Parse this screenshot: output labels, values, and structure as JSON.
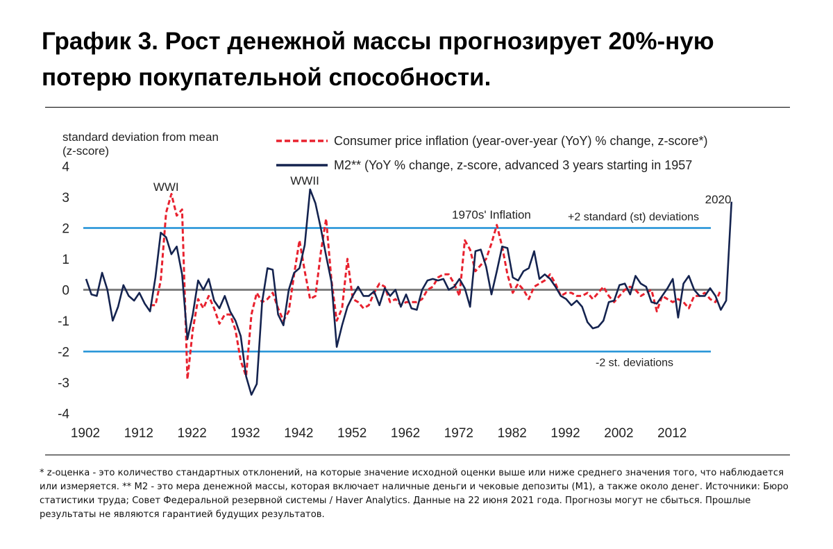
{
  "page": {
    "title": "График 3. Рост денежной массы прогнозирует 20%-ную потерю покупательной способности.",
    "footnote": "* z-оценка - это количество стандартных отклонений, на которые значение исходной оценки выше или ниже среднего значения того, что наблюдается или измеряется. ** M2 - это мера денежной массы, которая включает наличные деньги и чековые депозиты (M1), а также около денег. Источники: Бюро статистики труда; Совет Федеральной резервной системы / Haver Analytics. Данные на 22 июня 2021 года. Прогнозы могут не сбыться. Прошлые результаты не являются гарантией будущих результатов."
  },
  "chart_data": {
    "type": "line",
    "ylabel": "standard deviation from mean\n(z-score)",
    "ylim": [
      -4,
      4
    ],
    "yticks": [
      4,
      3,
      2,
      1,
      0,
      -1,
      -2,
      -3,
      -4
    ],
    "xlim": [
      1902,
      2024
    ],
    "xticks": [
      1902,
      1912,
      1922,
      1932,
      1942,
      1952,
      1962,
      1972,
      1982,
      1992,
      2002,
      2012
    ],
    "reference_lines": [
      {
        "y": 2,
        "label": "+2 standard (st) deviations",
        "color": "#1e90d6"
      },
      {
        "y": 0,
        "label": "",
        "color": "#7f7f7f"
      },
      {
        "y": -2,
        "label": "-2 st. deviations",
        "color": "#1e90d6"
      }
    ],
    "annotations": [
      {
        "text": "WWI",
        "x": 1917,
        "y": 3.2
      },
      {
        "text": "WWII",
        "x": 1943,
        "y": 3.4
      },
      {
        "text": "1970s' Inflation",
        "x": 1978,
        "y": 2.3
      },
      {
        "text": "2020",
        "x": 2020.5,
        "y": 2.8
      }
    ],
    "legend_position": "top",
    "series": [
      {
        "name": "Consumer price inflation (year-over-year (YoY) % change, z-score*)",
        "color": "#e8212e",
        "style": "dashed",
        "x": [
          1914,
          1915,
          1916,
          1917,
          1918,
          1919,
          1920,
          1921,
          1922,
          1923,
          1924,
          1925,
          1926,
          1927,
          1928,
          1929,
          1930,
          1931,
          1932,
          1933,
          1934,
          1935,
          1936,
          1937,
          1938,
          1939,
          1940,
          1941,
          1942,
          1943,
          1944,
          1945,
          1946,
          1947,
          1948,
          1949,
          1950,
          1951,
          1952,
          1953,
          1954,
          1955,
          1956,
          1957,
          1958,
          1959,
          1960,
          1961,
          1962,
          1963,
          1964,
          1965,
          1966,
          1967,
          1968,
          1969,
          1970,
          1971,
          1972,
          1973,
          1974,
          1975,
          1976,
          1977,
          1978,
          1979,
          1980,
          1981,
          1982,
          1983,
          1984,
          1985,
          1986,
          1987,
          1988,
          1989,
          1990,
          1991,
          1992,
          1993,
          1994,
          1995,
          1996,
          1997,
          1998,
          1999,
          2000,
          2001,
          2002,
          2003,
          2004,
          2005,
          2006,
          2007,
          2008,
          2009,
          2010,
          2011,
          2012,
          2013,
          2014,
          2015,
          2016,
          2017,
          2018,
          2019,
          2020,
          2021
        ],
        "values": [
          -0.5,
          -0.5,
          0.3,
          2.5,
          3.1,
          2.4,
          2.6,
          -2.9,
          -1.3,
          -0.3,
          -0.6,
          -0.2,
          -0.6,
          -1.1,
          -0.8,
          -0.8,
          -1.3,
          -2.3,
          -2.8,
          -0.8,
          -0.1,
          -0.4,
          -0.3,
          -0.1,
          -0.6,
          -1.0,
          -0.7,
          0.5,
          1.6,
          0.6,
          -0.3,
          -0.2,
          1.2,
          2.3,
          0.3,
          -1.0,
          -0.6,
          1.0,
          -0.3,
          -0.4,
          -0.6,
          -0.5,
          -0.1,
          0.2,
          0.1,
          -0.4,
          -0.3,
          -0.5,
          -0.4,
          -0.4,
          -0.4,
          -0.3,
          0.0,
          0.1,
          0.4,
          0.5,
          0.5,
          0.2,
          -0.2,
          1.6,
          1.3,
          0.6,
          0.8,
          1.0,
          1.5,
          2.1,
          1.4,
          0.5,
          -0.1,
          0.2,
          0.0,
          -0.3,
          0.1,
          0.2,
          0.3,
          0.5,
          0.2,
          -0.2,
          -0.1,
          -0.1,
          -0.2,
          -0.2,
          -0.1,
          -0.3,
          -0.1,
          0.1,
          -0.2,
          -0.4,
          -0.2,
          0.0,
          0.1,
          0.0,
          -0.2,
          -0.1,
          0.0,
          -0.7,
          -0.2,
          -0.3,
          -0.4,
          -0.3,
          -0.4,
          -0.6,
          -0.2,
          -0.2,
          -0.1,
          -0.3,
          -0.4,
          0.0
        ]
      },
      {
        "name": "M2** (YoY % change, z-score, advanced 3 years starting in 1957",
        "color": "#14234f",
        "style": "solid",
        "x": [
          1902,
          1903,
          1904,
          1905,
          1906,
          1907,
          1908,
          1909,
          1910,
          1911,
          1912,
          1913,
          1914,
          1915,
          1916,
          1917,
          1918,
          1919,
          1920,
          1921,
          1922,
          1923,
          1924,
          1925,
          1926,
          1927,
          1928,
          1929,
          1930,
          1931,
          1932,
          1933,
          1934,
          1935,
          1936,
          1937,
          1938,
          1939,
          1940,
          1941,
          1942,
          1943,
          1944,
          1945,
          1946,
          1947,
          1948,
          1949,
          1950,
          1951,
          1952,
          1953,
          1954,
          1955,
          1956,
          1957,
          1958,
          1959,
          1960,
          1961,
          1962,
          1963,
          1964,
          1965,
          1966,
          1967,
          1968,
          1969,
          1970,
          1971,
          1972,
          1973,
          1974,
          1975,
          1976,
          1977,
          1978,
          1979,
          1980,
          1981,
          1982,
          1983,
          1984,
          1985,
          1986,
          1987,
          1988,
          1989,
          1990,
          1991,
          1992,
          1993,
          1994,
          1995,
          1996,
          1997,
          1998,
          1999,
          2000,
          2001,
          2002,
          2003,
          2004,
          2005,
          2006,
          2007,
          2008,
          2009,
          2010,
          2011,
          2012,
          2013,
          2014,
          2015,
          2016,
          2017,
          2018,
          2019,
          2020,
          2021,
          2022,
          2023
        ],
        "values": [
          0.35,
          -0.15,
          -0.2,
          0.55,
          0.0,
          -1.0,
          -0.55,
          0.15,
          -0.2,
          -0.35,
          -0.1,
          -0.45,
          -0.7,
          0.4,
          1.85,
          1.7,
          1.15,
          1.4,
          0.5,
          -1.6,
          -0.8,
          0.3,
          0.0,
          0.35,
          -0.35,
          -0.6,
          -0.2,
          -0.7,
          -1.0,
          -1.5,
          -2.8,
          -3.4,
          -3.05,
          -0.4,
          0.7,
          0.65,
          -0.8,
          -1.15,
          0.0,
          0.55,
          0.7,
          1.45,
          3.25,
          2.8,
          2.0,
          1.1,
          0.25,
          -1.85,
          -1.15,
          -0.55,
          -0.2,
          0.1,
          -0.2,
          -0.2,
          -0.05,
          -0.5,
          0.05,
          -0.2,
          0.0,
          -0.55,
          -0.15,
          -0.6,
          -0.65,
          0.0,
          0.3,
          0.35,
          0.3,
          0.35,
          0.0,
          0.1,
          0.35,
          0.05,
          -0.55,
          1.25,
          1.3,
          0.75,
          -0.15,
          0.6,
          1.4,
          1.35,
          0.4,
          0.3,
          0.6,
          0.7,
          1.25,
          0.35,
          0.5,
          0.35,
          0.1,
          -0.2,
          -0.3,
          -0.5,
          -0.35,
          -0.55,
          -1.05,
          -1.25,
          -1.2,
          -1.0,
          -0.4,
          -0.35,
          0.15,
          0.2,
          -0.15,
          0.45,
          0.2,
          0.1,
          -0.4,
          -0.45,
          -0.2,
          0.05,
          0.35,
          -0.9,
          0.2,
          0.45,
          0.0,
          -0.2,
          -0.2,
          0.05,
          -0.2,
          -0.65,
          -0.35,
          2.85
        ]
      }
    ]
  }
}
